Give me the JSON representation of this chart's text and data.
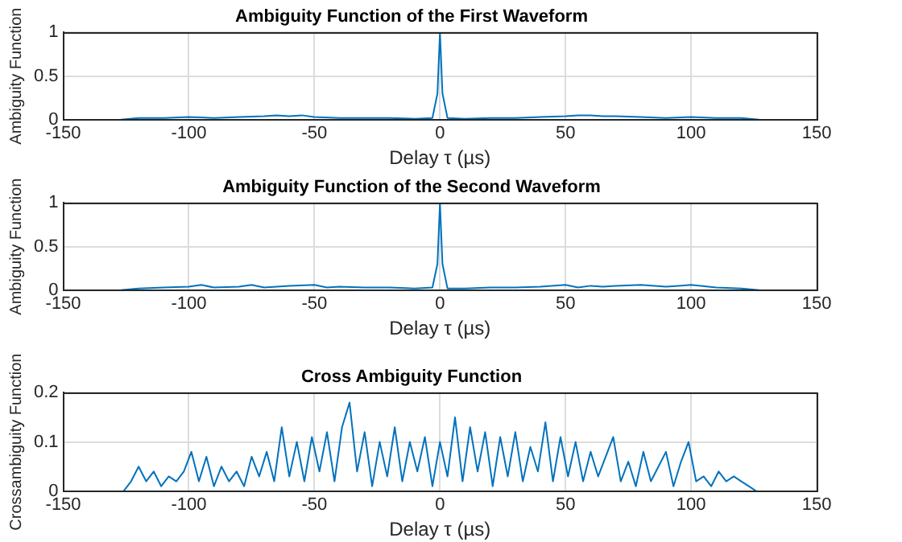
{
  "chart_data": [
    {
      "type": "line",
      "title": "Ambiguity Function of the First Waveform",
      "xlabel": "Delay τ (µs)",
      "ylabel": "Ambiguity Function",
      "x": [
        -127,
        -120,
        -110,
        -100,
        -90,
        -80,
        -70,
        -65,
        -60,
        -55,
        -50,
        -40,
        -30,
        -20,
        -10,
        -3,
        -1,
        0,
        1,
        3,
        10,
        20,
        30,
        40,
        50,
        55,
        60,
        65,
        70,
        80,
        90,
        100,
        110,
        120,
        127
      ],
      "series": [
        {
          "color": "#0072bd",
          "values": [
            0,
            0.02,
            0.02,
            0.03,
            0.02,
            0.03,
            0.04,
            0.05,
            0.04,
            0.05,
            0.03,
            0.02,
            0.02,
            0.02,
            0.01,
            0.02,
            0.3,
            1,
            0.3,
            0.02,
            0.01,
            0.02,
            0.02,
            0.03,
            0.04,
            0.05,
            0.05,
            0.04,
            0.04,
            0.03,
            0.02,
            0.03,
            0.02,
            0.02,
            0
          ]
        }
      ],
      "xlim": [
        -150,
        150
      ],
      "xticks": [
        -150,
        -100,
        -50,
        0,
        50,
        100,
        150
      ],
      "ylim": [
        0,
        1
      ],
      "yticks": [
        0,
        0.5,
        1
      ],
      "grid": true,
      "legend": false
    },
    {
      "type": "line",
      "title": "Ambiguity Function of the Second Waveform",
      "xlabel": "Delay τ (µs)",
      "ylabel": "Ambiguity Function",
      "x": [
        -127,
        -120,
        -110,
        -100,
        -95,
        -90,
        -80,
        -75,
        -70,
        -60,
        -50,
        -45,
        -40,
        -30,
        -20,
        -10,
        -3,
        -1,
        0,
        1,
        3,
        10,
        20,
        30,
        40,
        50,
        55,
        60,
        65,
        70,
        80,
        90,
        95,
        100,
        110,
        120,
        127
      ],
      "series": [
        {
          "color": "#0072bd",
          "values": [
            0,
            0.02,
            0.03,
            0.04,
            0.06,
            0.03,
            0.04,
            0.06,
            0.03,
            0.05,
            0.06,
            0.03,
            0.04,
            0.03,
            0.03,
            0.02,
            0.03,
            0.3,
            1,
            0.3,
            0.02,
            0.02,
            0.03,
            0.03,
            0.04,
            0.06,
            0.03,
            0.05,
            0.04,
            0.05,
            0.06,
            0.04,
            0.05,
            0.06,
            0.03,
            0.02,
            0
          ]
        }
      ],
      "xlim": [
        -150,
        150
      ],
      "xticks": [
        -150,
        -100,
        -50,
        0,
        50,
        100,
        150
      ],
      "ylim": [
        0,
        1
      ],
      "yticks": [
        0,
        0.5,
        1
      ],
      "grid": true,
      "legend": false
    },
    {
      "type": "line",
      "title": "Cross Ambiguity Function",
      "xlabel": "Delay τ (µs)",
      "ylabel": "Crossambiguity Function",
      "x": [
        -126,
        -123,
        -120,
        -117,
        -114,
        -111,
        -108,
        -105,
        -102,
        -99,
        -96,
        -93,
        -90,
        -87,
        -84,
        -81,
        -78,
        -75,
        -72,
        -69,
        -66,
        -63,
        -60,
        -57,
        -54,
        -51,
        -48,
        -45,
        -42,
        -39,
        -36,
        -33,
        -30,
        -27,
        -24,
        -21,
        -18,
        -15,
        -12,
        -9,
        -6,
        -3,
        0,
        3,
        6,
        9,
        12,
        15,
        18,
        21,
        24,
        27,
        30,
        33,
        36,
        39,
        42,
        45,
        48,
        51,
        54,
        57,
        60,
        63,
        66,
        69,
        72,
        75,
        78,
        81,
        84,
        87,
        90,
        93,
        96,
        99,
        102,
        105,
        108,
        111,
        114,
        117,
        120,
        123,
        126
      ],
      "series": [
        {
          "color": "#0072bd",
          "values": [
            0,
            0.02,
            0.05,
            0.02,
            0.04,
            0.01,
            0.03,
            0.02,
            0.04,
            0.08,
            0.02,
            0.07,
            0.01,
            0.05,
            0.02,
            0.04,
            0.01,
            0.07,
            0.03,
            0.08,
            0.02,
            0.13,
            0.03,
            0.1,
            0.02,
            0.11,
            0.04,
            0.12,
            0.02,
            0.13,
            0.18,
            0.04,
            0.12,
            0.01,
            0.1,
            0.03,
            0.13,
            0.02,
            0.1,
            0.04,
            0.11,
            0.01,
            0.1,
            0.03,
            0.15,
            0.02,
            0.13,
            0.04,
            0.12,
            0.01,
            0.11,
            0.03,
            0.12,
            0.02,
            0.09,
            0.04,
            0.14,
            0.02,
            0.11,
            0.03,
            0.1,
            0.02,
            0.08,
            0.03,
            0.07,
            0.11,
            0.02,
            0.06,
            0.01,
            0.08,
            0.02,
            0.05,
            0.08,
            0.01,
            0.06,
            0.1,
            0.02,
            0.03,
            0.01,
            0.04,
            0.02,
            0.03,
            0.02,
            0.01,
            0
          ]
        }
      ],
      "xlim": [
        -150,
        150
      ],
      "xticks": [
        -150,
        -100,
        -50,
        0,
        50,
        100,
        150
      ],
      "ylim": [
        0,
        0.2
      ],
      "yticks": [
        0,
        0.1,
        0.2
      ],
      "grid": true,
      "legend": false
    }
  ]
}
